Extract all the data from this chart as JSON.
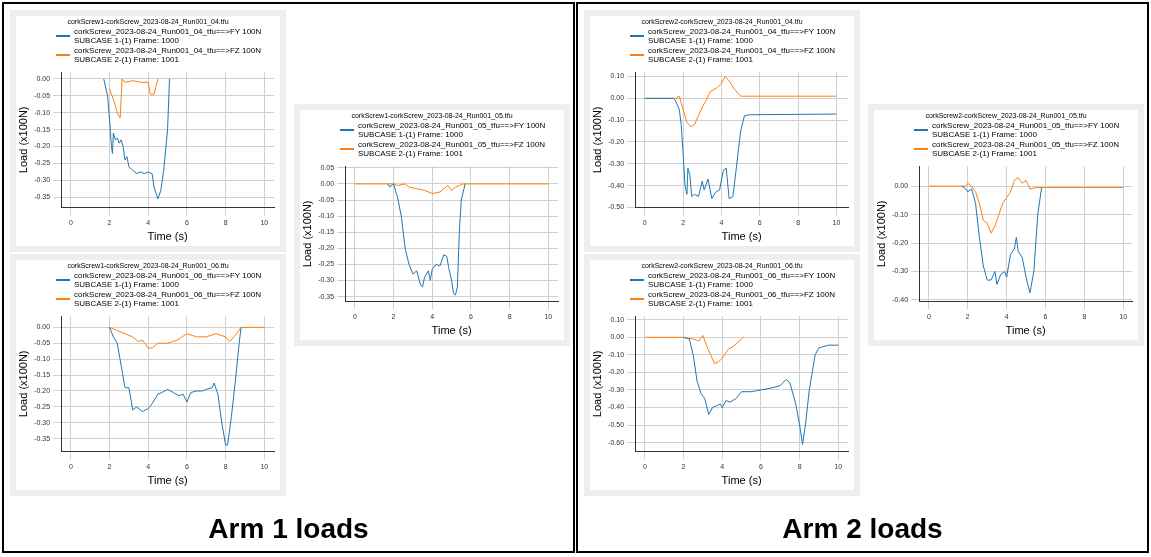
{
  "chart_data": [
    {
      "type": "line",
      "title": "corkScrew1-corkScrew_2023-08-24_Run001_04.tfu",
      "xlabel": "Time (s)",
      "ylabel": "Load (x100N)",
      "xlim": [
        -0.5,
        10.5
      ],
      "xticks": [
        0,
        2,
        4,
        6,
        8,
        10
      ],
      "ylim": [
        -0.38,
        0.02
      ],
      "yticks": [
        {
          "value": 0,
          "label": "0.00"
        },
        {
          "value": -0.05,
          "label": "-0.05"
        },
        {
          "value": -0.1,
          "label": "-0.10"
        },
        {
          "value": -0.15,
          "label": "-0.15"
        },
        {
          "value": -0.2,
          "label": "-0.20"
        },
        {
          "value": -0.25,
          "label": "-0.25"
        },
        {
          "value": -0.3,
          "label": "-0.30"
        },
        {
          "value": -0.35,
          "label": "-0.35"
        }
      ],
      "grid": true,
      "legend": "top",
      "marker": "none",
      "line_style": "solid",
      "series": [
        {
          "name": "corkScrew_2023-08-24_Run001_04_tfu==>FY 100N SUBCASE 1-(1) Frame: 1000",
          "color": "#1f77b4",
          "x": [
            1.7,
            1.9,
            2.0,
            2.1,
            2.15,
            2.2,
            2.3,
            2.4,
            2.5,
            2.6,
            2.7,
            2.8,
            2.9,
            3.0,
            3.2,
            3.4,
            3.6,
            3.8,
            4.0,
            4.2,
            4.3,
            4.5,
            4.65,
            4.8,
            5.0,
            5.1
          ],
          "values": [
            0,
            -0.05,
            -0.12,
            -0.2,
            -0.22,
            -0.16,
            -0.18,
            -0.175,
            -0.19,
            -0.18,
            -0.2,
            -0.24,
            -0.23,
            -0.26,
            -0.27,
            -0.28,
            -0.275,
            -0.28,
            -0.275,
            -0.28,
            -0.32,
            -0.355,
            -0.33,
            -0.27,
            -0.15,
            0
          ]
        },
        {
          "name": "corkScrew_2023-08-24_Run001_04_tfu==>FZ 100N SUBCASE 2-(1) Frame: 1001",
          "color": "#ff7f0e",
          "x": [
            2.0,
            2.2,
            2.4,
            2.55,
            2.65,
            2.8,
            3.2,
            3.6,
            4.0,
            4.1,
            4.3,
            4.5
          ],
          "values": [
            -0.03,
            -0.06,
            -0.1,
            -0.115,
            0,
            -0.01,
            -0.005,
            -0.01,
            -0.01,
            -0.045,
            -0.045,
            0
          ]
        }
      ]
    },
    {
      "type": "line",
      "title": "corkScrew1-corkScrew_2023-08-24_Run001_05.tfu",
      "xlabel": "Time (s)",
      "ylabel": "Load (x100N)",
      "xlim": [
        -0.5,
        10.5
      ],
      "xticks": [
        0,
        2,
        4,
        6,
        8,
        10
      ],
      "ylim": [
        -0.365,
        0.055
      ],
      "yticks": [
        {
          "value": 0.05,
          "label": "0.05"
        },
        {
          "value": 0,
          "label": "0.00"
        },
        {
          "value": -0.05,
          "label": "-0.05"
        },
        {
          "value": -0.1,
          "label": "-0.10"
        },
        {
          "value": -0.15,
          "label": "-0.15"
        },
        {
          "value": -0.2,
          "label": "-0.20"
        },
        {
          "value": -0.25,
          "label": "-0.25"
        },
        {
          "value": -0.3,
          "label": "-0.30"
        },
        {
          "value": -0.35,
          "label": "-0.35"
        }
      ],
      "grid": true,
      "legend": "top",
      "marker": "none",
      "line_style": "solid",
      "series": [
        {
          "name": "corkScrew_2023-08-24_Run001_05_tfu==>FY 100N SUBCASE 1-(1) Frame: 1000",
          "color": "#1f77b4",
          "x": [
            1.7,
            1.8,
            2.0,
            2.2,
            2.4,
            2.6,
            2.8,
            3.0,
            3.2,
            3.4,
            3.5,
            3.6,
            3.8,
            3.9,
            4.0,
            4.2,
            4.4,
            4.6,
            4.75,
            4.85,
            5.0,
            5.1,
            5.2,
            5.3,
            5.4,
            5.5,
            5.7
          ],
          "values": [
            0,
            -0.01,
            0,
            -0.04,
            -0.1,
            -0.2,
            -0.25,
            -0.28,
            -0.27,
            -0.315,
            -0.32,
            -0.29,
            -0.27,
            -0.3,
            -0.265,
            -0.25,
            -0.255,
            -0.22,
            -0.225,
            -0.26,
            -0.3,
            -0.34,
            -0.345,
            -0.32,
            -0.15,
            -0.05,
            0
          ]
        },
        {
          "name": "corkScrew_2023-08-24_Run001_05_tfu==>FZ 100N SUBCASE 2-(1) Frame: 1001",
          "color": "#ff7f0e",
          "x": [
            0,
            2.0,
            2.2,
            2.6,
            2.8,
            3.2,
            3.6,
            4.0,
            4.4,
            4.6,
            4.8,
            5.0,
            5.2,
            5.4,
            5.6,
            10
          ],
          "values": [
            0,
            0,
            -0.005,
            0,
            -0.01,
            -0.015,
            -0.02,
            -0.03,
            -0.025,
            -0.015,
            -0.005,
            -0.02,
            -0.01,
            -0.005,
            0,
            0
          ]
        }
      ]
    },
    {
      "type": "line",
      "title": "corkScrew1-corkScrew_2023-08-24_Run001_06.tfu",
      "xlabel": "Time (s)",
      "ylabel": "Load (x100N)",
      "xlim": [
        -0.5,
        10.5
      ],
      "xticks": [
        0,
        2,
        4,
        6,
        8,
        10
      ],
      "ylim": [
        -0.39,
        0.035
      ],
      "yticks": [
        {
          "value": 0,
          "label": "0.00"
        },
        {
          "value": -0.05,
          "label": "-0.05"
        },
        {
          "value": -0.1,
          "label": "-0.10"
        },
        {
          "value": -0.15,
          "label": "-0.15"
        },
        {
          "value": -0.2,
          "label": "-0.20"
        },
        {
          "value": -0.25,
          "label": "-0.25"
        },
        {
          "value": -0.3,
          "label": "-0.30"
        },
        {
          "value": -0.35,
          "label": "-0.35"
        }
      ],
      "grid": true,
      "legend": "top",
      "marker": "none",
      "line_style": "solid",
      "series": [
        {
          "name": "corkScrew_2023-08-24_Run001_06_tfu==>FY 100N SUBCASE 1-(1) Frame: 1000",
          "color": "#1f77b4",
          "x": [
            2.0,
            2.2,
            2.4,
            2.6,
            2.8,
            3.0,
            3.2,
            3.4,
            3.7,
            4.0,
            4.2,
            4.5,
            4.7,
            5.0,
            5.3,
            5.6,
            5.8,
            6.0,
            6.2,
            6.5,
            6.8,
            7.0,
            7.3,
            7.4,
            7.6,
            7.8,
            8.0,
            8.1,
            8.3,
            8.5,
            8.7,
            8.8
          ],
          "values": [
            0,
            -0.03,
            -0.05,
            -0.12,
            -0.19,
            -0.19,
            -0.26,
            -0.25,
            -0.265,
            -0.255,
            -0.24,
            -0.21,
            -0.205,
            -0.195,
            -0.205,
            -0.215,
            -0.21,
            -0.235,
            -0.205,
            -0.2,
            -0.2,
            -0.195,
            -0.19,
            -0.175,
            -0.21,
            -0.3,
            -0.37,
            -0.37,
            -0.28,
            -0.17,
            -0.05,
            0
          ]
        },
        {
          "name": "corkScrew_2023-08-24_Run001_06_tfu==>FZ 100N SUBCASE 2-(1) Frame: 1001",
          "color": "#ff7f0e",
          "x": [
            2.0,
            2.4,
            2.8,
            3.2,
            3.5,
            3.7,
            4.0,
            4.2,
            4.5,
            5.0,
            5.5,
            6.0,
            6.5,
            7.0,
            7.5,
            8.0,
            8.2,
            8.5,
            8.8,
            10
          ],
          "values": [
            0,
            -0.01,
            -0.02,
            -0.03,
            -0.045,
            -0.04,
            -0.065,
            -0.065,
            -0.05,
            -0.05,
            -0.04,
            -0.02,
            -0.03,
            -0.03,
            -0.02,
            -0.03,
            -0.045,
            -0.025,
            0,
            0
          ]
        }
      ]
    },
    {
      "type": "other",
      "title": "Arm 1 loads"
    },
    {
      "type": "line",
      "title": "corkScrew2-corkScrew_2023-08-24_Run001_04.tfu",
      "xlabel": "Time (s)",
      "ylabel": "Load (x100N)",
      "xlim": [
        -0.5,
        10.6
      ],
      "xticks": [
        0,
        2,
        4,
        6,
        8,
        10
      ],
      "ylim": [
        -0.5,
        0.12
      ],
      "yticks": [
        {
          "value": 0.1,
          "label": "0.10"
        },
        {
          "value": 0,
          "label": "0.00"
        },
        {
          "value": -0.1,
          "label": "-0.10"
        },
        {
          "value": -0.2,
          "label": "-0.20"
        },
        {
          "value": -0.3,
          "label": "-0.30"
        },
        {
          "value": -0.4,
          "label": "-0.40"
        },
        {
          "value": -0.5,
          "label": "-0.50"
        }
      ],
      "grid": true,
      "legend": "top",
      "marker": "none",
      "line_style": "solid",
      "series": [
        {
          "name": "corkScrew_2023-08-24_Run001_04_tfu==>FY 100N SUBCASE 1-(1) Frame: 1000",
          "color": "#1f77b4",
          "x": [
            0,
            1.5,
            1.6,
            1.8,
            1.9,
            2.0,
            2.1,
            2.2,
            2.25,
            2.35,
            2.45,
            2.6,
            2.8,
            3.0,
            3.1,
            3.3,
            3.5,
            3.7,
            3.9,
            4.1,
            4.25,
            4.4,
            4.6,
            4.8,
            5.0,
            5.2,
            5.5,
            10
          ],
          "values": [
            0,
            0,
            -0.01,
            -0.05,
            -0.12,
            -0.25,
            -0.4,
            -0.44,
            -0.32,
            -0.35,
            -0.45,
            -0.44,
            -0.45,
            -0.38,
            -0.42,
            -0.37,
            -0.46,
            -0.43,
            -0.42,
            -0.33,
            -0.32,
            -0.46,
            -0.45,
            -0.3,
            -0.15,
            -0.08,
            -0.075,
            -0.072
          ]
        },
        {
          "name": "corkScrew_2023-08-24_Run001_04_tfu==>FZ 100N SUBCASE 2-(1) Frame: 1001",
          "color": "#ff7f0e",
          "x": [
            0,
            1.6,
            1.8,
            2.0,
            2.2,
            2.4,
            2.6,
            2.8,
            3.0,
            3.2,
            3.4,
            3.8,
            4.0,
            4.2,
            4.4,
            4.7,
            5.0,
            10
          ],
          "values": [
            0,
            0,
            0.01,
            -0.05,
            -0.11,
            -0.13,
            -0.12,
            -0.08,
            -0.04,
            -0.01,
            0.03,
            0.05,
            0.07,
            0.1,
            0.08,
            0.04,
            0.01,
            0.01
          ]
        }
      ]
    },
    {
      "type": "line",
      "title": "corkScrew2-corkScrew_2023-08-24_Run001_05.tfu",
      "xlabel": "Time (s)",
      "ylabel": "Load (x100N)",
      "xlim": [
        -0.5,
        10.45
      ],
      "xticks": [
        0,
        2,
        4,
        6,
        8,
        10
      ],
      "ylim": [
        -0.405,
        0.07
      ],
      "yticks": [
        {
          "value": 0,
          "label": "0.00"
        },
        {
          "value": -0.1,
          "label": "-0.10"
        },
        {
          "value": -0.2,
          "label": "-0.20"
        },
        {
          "value": -0.3,
          "label": "-0.30"
        },
        {
          "value": -0.4,
          "label": "-0.40"
        }
      ],
      "grid": true,
      "legend": "top",
      "marker": "none",
      "line_style": "solid",
      "series": [
        {
          "name": "corkScrew_2023-08-24_Run001_05_tfu==>FY 100N SUBCASE 1-(1) Frame: 1000",
          "color": "#1f77b4",
          "x": [
            1.7,
            1.9,
            2.0,
            2.2,
            2.4,
            2.6,
            2.8,
            3.0,
            3.2,
            3.4,
            3.5,
            3.7,
            3.9,
            4.0,
            4.2,
            4.4,
            4.5,
            4.6,
            4.8,
            5.0,
            5.2,
            5.4,
            5.6,
            5.8
          ],
          "values": [
            0,
            -0.01,
            -0.02,
            -0.01,
            -0.06,
            -0.18,
            -0.28,
            -0.33,
            -0.33,
            -0.3,
            -0.345,
            -0.31,
            -0.3,
            -0.32,
            -0.24,
            -0.22,
            -0.18,
            -0.23,
            -0.25,
            -0.32,
            -0.375,
            -0.3,
            -0.1,
            -0.005
          ]
        },
        {
          "name": "corkScrew_2023-08-24_Run001_05_tfu==>FZ 100N SUBCASE 2-(1) Frame: 1001",
          "color": "#ff7f0e",
          "x": [
            0,
            1.9,
            2.0,
            2.2,
            2.4,
            2.6,
            2.8,
            3.0,
            3.2,
            3.4,
            3.6,
            3.8,
            4.0,
            4.2,
            4.4,
            4.6,
            4.8,
            5.0,
            5.2,
            5.5,
            10
          ],
          "values": [
            0,
            0,
            0.01,
            0,
            -0.02,
            -0.06,
            -0.12,
            -0.13,
            -0.165,
            -0.14,
            -0.1,
            -0.06,
            -0.04,
            -0.02,
            0.02,
            0.03,
            0.01,
            0.02,
            -0.01,
            -0.005,
            -0.005
          ]
        }
      ]
    },
    {
      "type": "line",
      "title": "corkScrew2-corkScrew_2023-08-24_Run001_06.tfu",
      "xlabel": "Time (s)",
      "ylabel": "Load (x100N)",
      "xlim": [
        -0.5,
        10.5
      ],
      "xticks": [
        0,
        2,
        4,
        6,
        8,
        10
      ],
      "ylim": [
        -0.65,
        0.12
      ],
      "yticks": [
        {
          "value": 0.1,
          "label": "0.10"
        },
        {
          "value": 0,
          "label": "0.00"
        },
        {
          "value": -0.1,
          "label": "-0.10"
        },
        {
          "value": -0.2,
          "label": "-0.20"
        },
        {
          "value": -0.3,
          "label": "-0.30"
        },
        {
          "value": -0.4,
          "label": "-0.40"
        },
        {
          "value": -0.5,
          "label": "-0.50"
        },
        {
          "value": -0.6,
          "label": "-0.60"
        }
      ],
      "grid": true,
      "legend": "top",
      "marker": "none",
      "line_style": "solid",
      "series": [
        {
          "name": "corkScrew_2023-08-24_Run001_06_tfu==>FY 100N SUBCASE 1-(1) Frame: 1000",
          "color": "#1f77b4",
          "x": [
            2.0,
            2.3,
            2.5,
            2.7,
            2.9,
            3.1,
            3.3,
            3.5,
            3.7,
            3.9,
            4.0,
            4.2,
            4.4,
            4.7,
            5.0,
            5.5,
            6.0,
            6.5,
            7.0,
            7.3,
            7.5,
            7.8,
            8.0,
            8.15,
            8.3,
            8.5,
            8.8,
            9.0,
            9.5,
            10
          ],
          "values": [
            0,
            -0.01,
            -0.1,
            -0.25,
            -0.32,
            -0.35,
            -0.44,
            -0.4,
            -0.39,
            -0.38,
            -0.4,
            -0.36,
            -0.37,
            -0.35,
            -0.31,
            -0.31,
            -0.3,
            -0.29,
            -0.275,
            -0.24,
            -0.26,
            -0.38,
            -0.5,
            -0.61,
            -0.5,
            -0.3,
            -0.1,
            -0.06,
            -0.045,
            -0.045
          ]
        },
        {
          "name": "corkScrew_2023-08-24_Run001_06_tfu==>FZ 100N SUBCASE 2-(1) Frame: 1001",
          "color": "#ff7f0e",
          "x": [
            0,
            2.0,
            2.5,
            2.8,
            3.0,
            3.2,
            3.4,
            3.6,
            3.8,
            4.0,
            4.3,
            4.6,
            5.0,
            5.1
          ],
          "values": [
            0,
            0,
            -0.01,
            -0.02,
            0.01,
            -0.05,
            -0.1,
            -0.15,
            -0.14,
            -0.12,
            -0.07,
            -0.05,
            -0.01,
            0
          ]
        }
      ]
    },
    {
      "type": "other",
      "title": "Arm 2 loads"
    }
  ]
}
